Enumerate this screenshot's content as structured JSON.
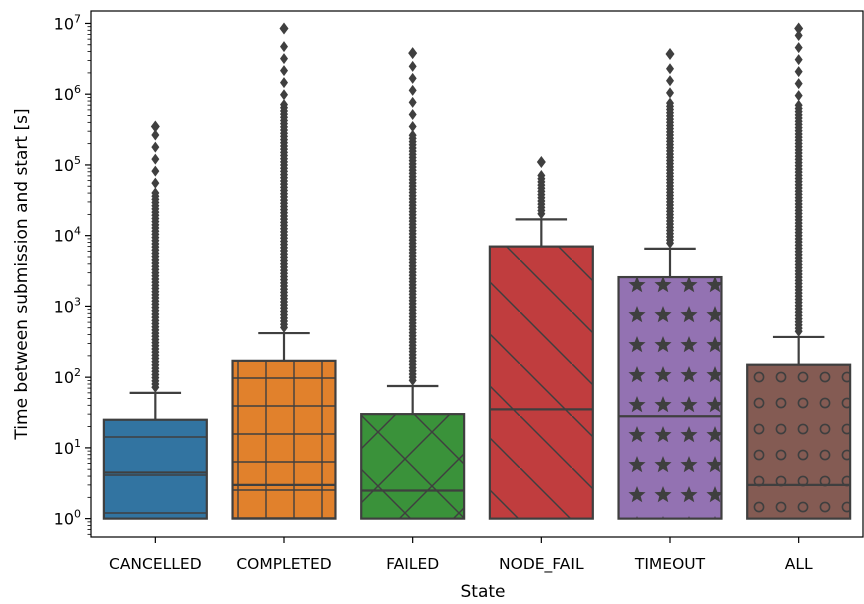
{
  "chart_data": {
    "type": "box",
    "xlabel": "State",
    "ylabel": "Time between submission and start [s]",
    "yscale": "log",
    "ylim": [
      0.55,
      15000000
    ],
    "y_ticks": [
      {
        "value": 1,
        "base": "10",
        "exp": "0"
      },
      {
        "value": 10,
        "base": "10",
        "exp": "1"
      },
      {
        "value": 100,
        "base": "10",
        "exp": "2"
      },
      {
        "value": 1000,
        "base": "10",
        "exp": "3"
      },
      {
        "value": 10000,
        "base": "10",
        "exp": "4"
      },
      {
        "value": 100000,
        "base": "10",
        "exp": "5"
      },
      {
        "value": 1000000,
        "base": "10",
        "exp": "6"
      },
      {
        "value": 10000000,
        "base": "10",
        "exp": "7"
      }
    ],
    "grid": false,
    "categories": [
      "CANCELLED",
      "COMPLETED",
      "FAILED",
      "NODE_FAIL",
      "TIMEOUT",
      "ALL"
    ],
    "boxes": [
      {
        "category": "CANCELLED",
        "color": "#3274a1",
        "hatch": "horizontal",
        "q1": 1,
        "median": 4.5,
        "q3": 25,
        "whisker_low": 1,
        "whisker_high": 60,
        "max": 350000
      },
      {
        "category": "COMPLETED",
        "color": "#e1812c",
        "hatch": "grid",
        "q1": 1,
        "median": 3,
        "q3": 170,
        "whisker_low": 1,
        "whisker_high": 420,
        "max": 8500000
      },
      {
        "category": "FAILED",
        "color": "#3a923a",
        "hatch": "crosshatch",
        "q1": 1,
        "median": 2.5,
        "q3": 30,
        "whisker_low": 1,
        "whisker_high": 75,
        "max": 3800000
      },
      {
        "category": "NODE_FAIL",
        "color": "#c03d3e",
        "hatch": "diagonal",
        "q1": 1,
        "median": 35,
        "q3": 7000,
        "whisker_low": 1,
        "whisker_high": 17000,
        "max": 110000
      },
      {
        "category": "TIMEOUT",
        "color": "#9372b2",
        "hatch": "stars",
        "q1": 1,
        "median": 28,
        "q3": 2600,
        "whisker_low": 1,
        "whisker_high": 6500,
        "max": 3700000
      },
      {
        "category": "ALL",
        "color": "#845b53",
        "hatch": "circles",
        "q1": 1,
        "median": 3,
        "q3": 150,
        "whisker_low": 1,
        "whisker_high": 370,
        "max": 8500000
      }
    ]
  }
}
